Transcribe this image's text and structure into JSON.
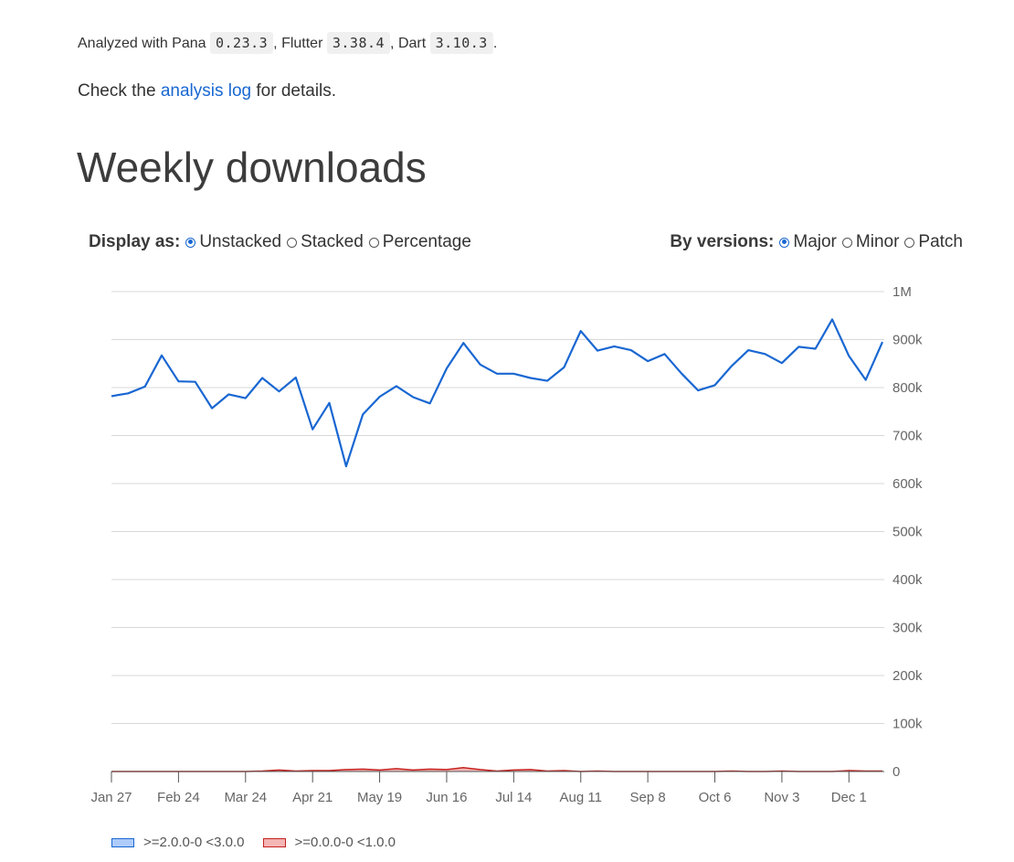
{
  "info": {
    "analyzed_prefix": "Analyzed with Pana",
    "pana_version": "0.23.3",
    "flutter_label": "Flutter",
    "flutter_version": "3.38.4",
    "dart_label": "Dart",
    "dart_version": "3.10.3",
    "check_prefix": "Check the",
    "analysis_log_link": "analysis log",
    "check_suffix": "for details."
  },
  "section_title": "Weekly downloads",
  "display_as": {
    "label": "Display as:",
    "options": [
      "Unstacked",
      "Stacked",
      "Percentage"
    ],
    "selected": "Unstacked"
  },
  "by_versions": {
    "label": "By versions:",
    "options": [
      "Major",
      "Minor",
      "Patch"
    ],
    "selected": "Major"
  },
  "colors": {
    "major_2_line": "#1967d2",
    "major_2_fill": "#aecbfa",
    "major_0_line": "#c5221f",
    "major_0_fill": "#f4b5b5",
    "grid": "#d8d8d8"
  },
  "chart_data": {
    "type": "line",
    "ylim": [
      0,
      1000000
    ],
    "y_ticks": [
      0,
      100000,
      200000,
      300000,
      400000,
      500000,
      600000,
      700000,
      800000,
      900000,
      1000000
    ],
    "y_tick_labels": [
      "0",
      "100k",
      "200k",
      "300k",
      "400k",
      "500k",
      "600k",
      "700k",
      "800k",
      "900k",
      "1M"
    ],
    "y_axis_position": "right",
    "grid": true,
    "legend_position": "bottom-left",
    "x_tick_labels": [
      "Jan 27",
      "Feb 24",
      "Mar 24",
      "Apr 21",
      "May 19",
      "Jun 16",
      "Jul 14",
      "Aug 11",
      "Sep 8",
      "Oct 6",
      "Nov 3",
      "Dec 1"
    ],
    "x_tick_indices": [
      0,
      4,
      8,
      12,
      16,
      20,
      24,
      28,
      32,
      36,
      40,
      44
    ],
    "series": [
      {
        "name": ">=2.0.0-0 <3.0.0",
        "values": [
          782000,
          788000,
          802000,
          867000,
          813000,
          812000,
          757000,
          786000,
          778000,
          820000,
          792000,
          821000,
          713000,
          768000,
          636000,
          744000,
          781000,
          803000,
          780000,
          767000,
          840000,
          893000,
          848000,
          829000,
          829000,
          820000,
          814000,
          842000,
          918000,
          877000,
          886000,
          878000,
          855000,
          870000,
          830000,
          794000,
          805000,
          845000,
          878000,
          870000,
          851000,
          885000,
          881000,
          942000,
          866000,
          816000,
          895000
        ]
      },
      {
        "name": ">=0.0.0-0 <1.0.0",
        "values": [
          0,
          0,
          0,
          0,
          0,
          0,
          0,
          0,
          0,
          1000,
          3000,
          1000,
          2000,
          2000,
          4000,
          5000,
          3000,
          6000,
          3000,
          5000,
          4000,
          8000,
          4000,
          1000,
          3000,
          4000,
          1000,
          2000,
          0,
          1000,
          0,
          0,
          0,
          0,
          0,
          0,
          0,
          1000,
          0,
          0,
          1000,
          0,
          0,
          0,
          2000,
          1000,
          1000
        ]
      }
    ]
  }
}
